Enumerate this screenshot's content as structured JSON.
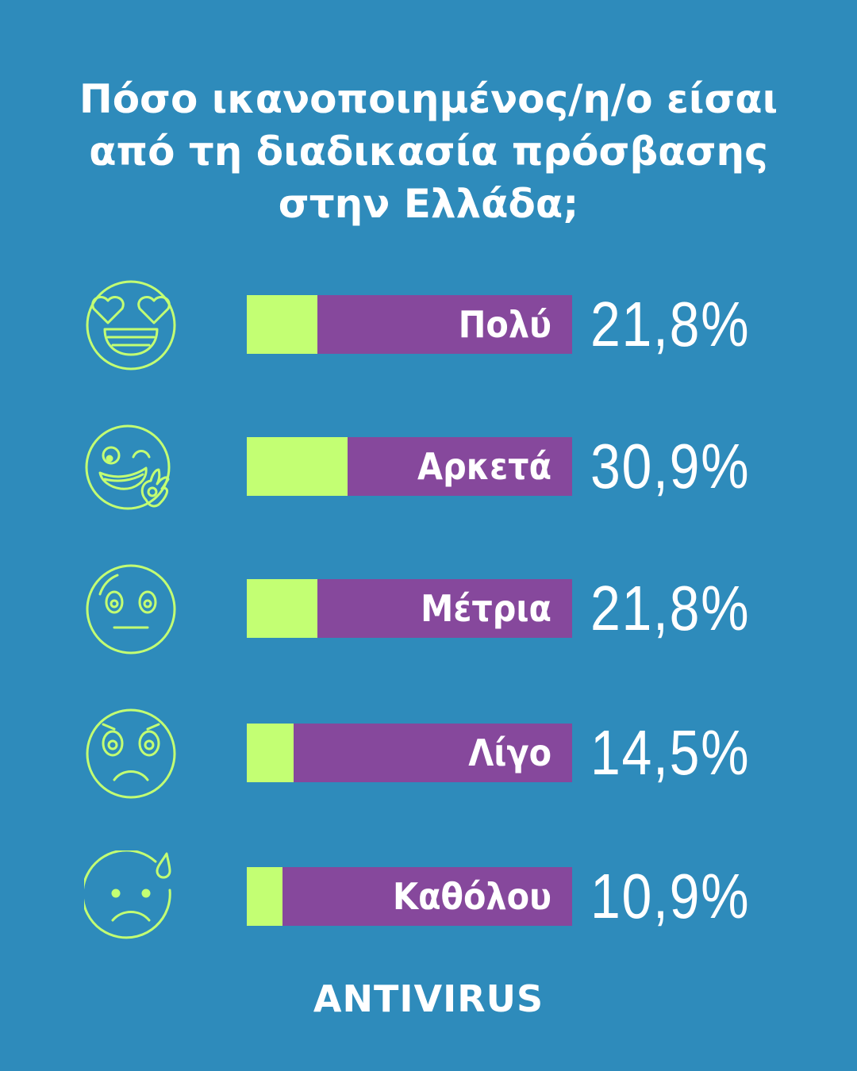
{
  "chart_data": {
    "type": "bar",
    "orientation": "horizontal",
    "title_lines": [
      "Πόσο ικανοποιημένος/η/ο είσαι",
      "από τη διαδικασία πρόσβασης",
      "στην Ελλάδα;"
    ],
    "categories": [
      "Πολύ",
      "Αρκετά",
      "Μέτρια",
      "Λίγο",
      "Καθόλου"
    ],
    "values": [
      21.8,
      30.9,
      21.8,
      14.5,
      10.9
    ],
    "value_labels": [
      "21,8%",
      "30,9%",
      "21,8%",
      "14,5%",
      "10,9%"
    ],
    "icons": [
      "heart-eyes-face-icon",
      "wink-ok-face-icon",
      "neutral-face-icon",
      "worried-face-icon",
      "sad-sweat-face-icon"
    ],
    "xlim": [
      0,
      100
    ],
    "colors": {
      "background": "#2E8BBB",
      "fill": "#C3FF73",
      "track": "#86489C",
      "icon": "#C3FF73"
    }
  },
  "brand": "ANTIVIRUS"
}
